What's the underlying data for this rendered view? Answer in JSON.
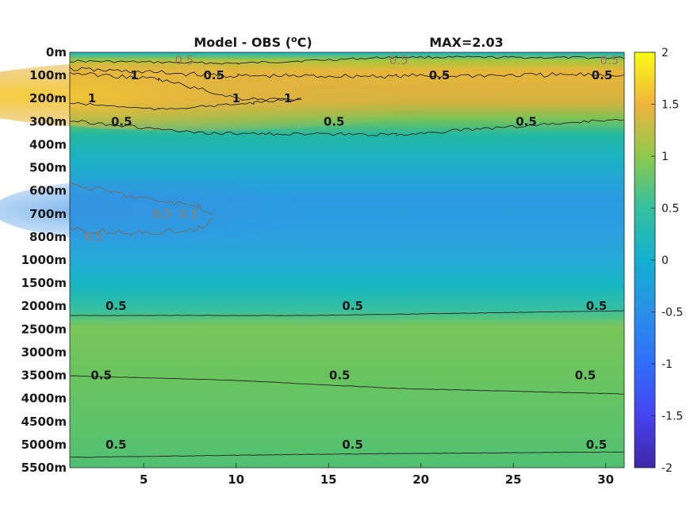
{
  "chart_data": {
    "type": "heatmap",
    "title": "Model - OBS (",
    "title_unit": "o",
    "title_unit_end": "C)",
    "max_label": "MAX=2.03",
    "xticks": [
      "5",
      "10",
      "15",
      "20",
      "25",
      "30"
    ],
    "xtick_values": [
      5,
      10,
      15,
      20,
      25,
      30
    ],
    "xlim": [
      1,
      31
    ],
    "depth_levels": [
      "0m",
      "100m",
      "200m",
      "300m",
      "400m",
      "500m",
      "600m",
      "700m",
      "800m",
      "1000m",
      "1500m",
      "2000m",
      "2500m",
      "3000m",
      "3500m",
      "4000m",
      "4500m",
      "5000m",
      "5500m"
    ],
    "colorbar": {
      "range": [
        -2,
        2
      ],
      "ticks": [
        "2",
        "1.5",
        "1",
        "0.5",
        "0",
        "-0.5",
        "-1",
        "-1.5",
        "-2"
      ],
      "tick_values": [
        2,
        1.5,
        1,
        0.5,
        0,
        -0.5,
        -1,
        -1.5,
        -2
      ],
      "colormap": "parula"
    },
    "max_value": 2.03,
    "contour_labels": [
      {
        "text": "0.5",
        "x": 7.2,
        "depth": "0m",
        "sign": "negative"
      },
      {
        "text": "0.5",
        "x": 18.8,
        "depth": "0m",
        "sign": "negative"
      },
      {
        "text": "0.5",
        "x": 30.2,
        "depth": "0m",
        "sign": "negative"
      },
      {
        "text": "1",
        "x": 4.5,
        "depth": "100m"
      },
      {
        "text": "0.5",
        "x": 8.8,
        "depth": "100m"
      },
      {
        "text": "0.5",
        "x": 21,
        "depth": "100m"
      },
      {
        "text": "0.5",
        "x": 29.8,
        "depth": "100m"
      },
      {
        "text": "1",
        "x": 10,
        "depth": "200m"
      },
      {
        "text": "1",
        "x": 12.8,
        "depth": "200m"
      },
      {
        "text": "1",
        "x": 2.2,
        "depth": "200m"
      },
      {
        "text": "0.5",
        "x": 3.8,
        "depth": "300m"
      },
      {
        "text": "0.5",
        "x": 15.3,
        "depth": "300m"
      },
      {
        "text": "0.5",
        "x": 25.7,
        "depth": "300m"
      },
      {
        "text": "0.5",
        "x": 6,
        "depth": "700m",
        "sign": "negative"
      },
      {
        "text": "0.5",
        "x": 7.4,
        "depth": "700m",
        "sign": "negative"
      },
      {
        "text": "0.5",
        "x": 2.3,
        "depth": "800m",
        "sign": "negative"
      },
      {
        "text": "0.5",
        "x": 3.5,
        "depth": "2000m"
      },
      {
        "text": "0.5",
        "x": 16.3,
        "depth": "2000m"
      },
      {
        "text": "0.5",
        "x": 29.5,
        "depth": "2000m"
      },
      {
        "text": "0.5",
        "x": 2.7,
        "depth": "3500m"
      },
      {
        "text": "0.5",
        "x": 15.6,
        "depth": "3500m"
      },
      {
        "text": "0.5",
        "x": 28.9,
        "depth": "3500m"
      },
      {
        "text": "0.5",
        "x": 3.5,
        "depth": "5000m"
      },
      {
        "text": "0.5",
        "x": 16.3,
        "depth": "5000m"
      },
      {
        "text": "0.5",
        "x": 29.5,
        "depth": "5000m"
      }
    ],
    "grid": false,
    "legend": "colorbar right"
  }
}
